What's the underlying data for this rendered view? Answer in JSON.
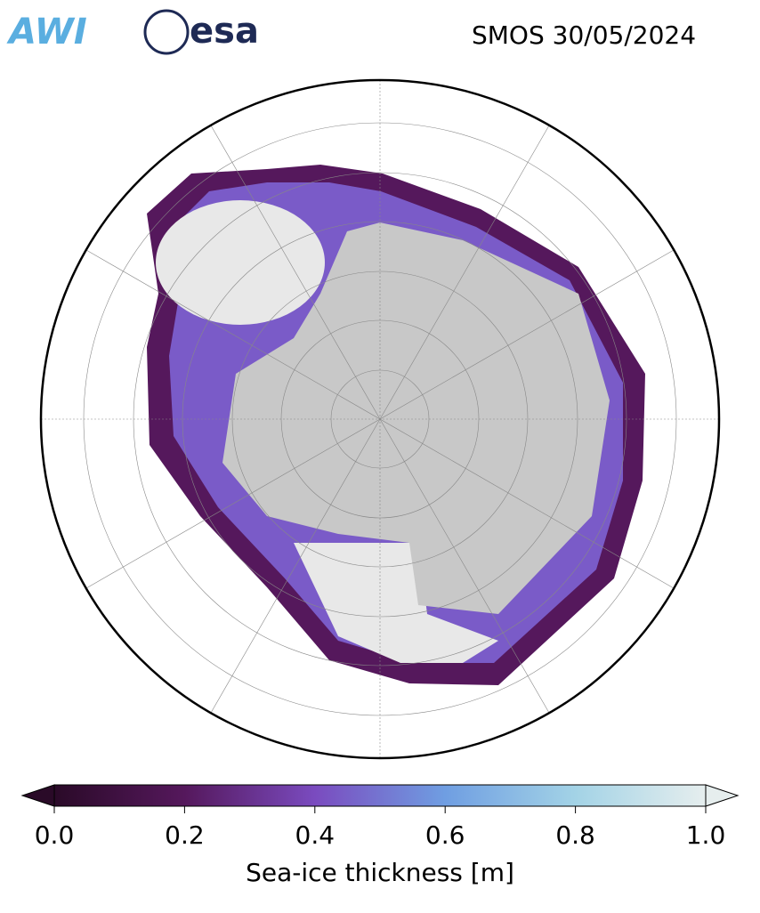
{
  "header": {
    "logos": [
      "AWI",
      "esa"
    ],
    "title": "SMOS 30/05/2024"
  },
  "colorbar": {
    "label": "Sea-ice thickness [m]",
    "lim": [
      0,
      1
    ],
    "ticks": [
      {
        "value": 0,
        "label": "0.0"
      },
      {
        "value": 0.2,
        "label": "0.2"
      },
      {
        "value": 0.4,
        "label": "0.4"
      },
      {
        "value": 0.6,
        "label": "0.6"
      },
      {
        "value": 0.8,
        "label": "0.8"
      },
      {
        "value": 1,
        "label": "1.0"
      }
    ],
    "colors": [
      "#2a0a28",
      "#55185c",
      "#7a4bbf",
      "#6f9ee2",
      "#a3d3e6",
      "#e6eeee"
    ]
  }
}
